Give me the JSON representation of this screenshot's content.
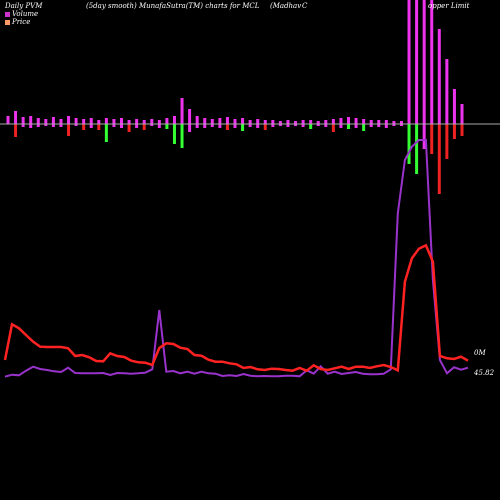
{
  "header": {
    "left": "Daily PVM",
    "mid": "(5day smooth) MunafaSutra(TM) charts for MCL",
    "right_a": "(Madhav",
    "right_b": "C",
    "right_c": "opper Limit"
  },
  "legend": [
    {
      "label": "Volume",
      "color": "#cc33cc"
    },
    {
      "label": "Price",
      "color": "#ff9966"
    }
  ],
  "chart_data": {
    "type": "line",
    "axis_labels": [
      "0M",
      "45.82"
    ],
    "baseline_color": "#aaaaaa",
    "price": {
      "color": "#ff2222",
      "values": [
        46.0,
        56.7,
        55.5,
        53.5,
        51.5,
        50.0,
        49.9,
        49.9,
        49.9,
        49.5,
        47.2,
        47.5,
        46.8,
        45.7,
        45.6,
        48.0,
        47.2,
        46.9,
        45.8,
        45.3,
        45.2,
        44.5,
        49.6,
        51.0,
        50.8,
        49.7,
        49.3,
        47.5,
        47.3,
        46.1,
        45.5,
        45.5,
        45.0,
        44.7,
        43.6,
        43.9,
        43.2,
        43.0,
        43.4,
        43.3,
        43.0,
        42.8,
        43.6,
        42.8,
        44.4,
        43.3,
        43.0,
        43.5,
        44.0,
        43.3,
        44.0,
        44.0,
        43.6,
        44.1,
        44.5,
        43.9,
        42.9,
        69.5,
        76.5,
        79.4,
        80.4,
        75.5,
        47.2,
        46.5,
        46.3,
        47.0,
        45.82
      ]
    },
    "volume_line": {
      "color": "#9933cc",
      "values": [
        10,
        16,
        14,
        28,
        40,
        33,
        30,
        26,
        24,
        37,
        21,
        20,
        20,
        20,
        21,
        15,
        21,
        20,
        19,
        20,
        22,
        32,
        210,
        25,
        27,
        20,
        25,
        19,
        25,
        20,
        19,
        12,
        14,
        12,
        18,
        13,
        11,
        12,
        11,
        11,
        13,
        13,
        11,
        29,
        19,
        41,
        19,
        25,
        18,
        21,
        24,
        19,
        17,
        17,
        19,
        32,
        500,
        660,
        700,
        720,
        720,
        300,
        60,
        20,
        38,
        31,
        37
      ]
    },
    "bars": {
      "colors": {
        "up": "#ee33ee",
        "down": "#ee2222",
        "volume_down": "#33ff33"
      },
      "values": [
        {
          "top": 8,
          "bottom": 0,
          "dir": "mixed"
        },
        {
          "top": 13,
          "bottom": -13,
          "dir": "mixed"
        },
        {
          "top": 7,
          "bottom": -3,
          "dir": "up"
        },
        {
          "top": 8,
          "bottom": -4,
          "dir": "up"
        },
        {
          "top": 6,
          "bottom": -3,
          "dir": "up"
        },
        {
          "top": 5,
          "bottom": -2,
          "dir": "up"
        },
        {
          "top": 7,
          "bottom": -3,
          "dir": "up"
        },
        {
          "top": 5,
          "bottom": -3,
          "dir": "up"
        },
        {
          "top": 8,
          "bottom": -12,
          "dir": "mixed"
        },
        {
          "top": 6,
          "bottom": -2,
          "dir": "up"
        },
        {
          "top": 5,
          "bottom": -6,
          "dir": "mixed"
        },
        {
          "top": 6,
          "bottom": -4,
          "dir": "up"
        },
        {
          "top": 4,
          "bottom": -6,
          "dir": "mixed"
        },
        {
          "top": 6,
          "bottom": -18,
          "dir": "volume_down"
        },
        {
          "top": 5,
          "bottom": -3,
          "dir": "up"
        },
        {
          "top": 6,
          "bottom": -4,
          "dir": "up"
        },
        {
          "top": 4,
          "bottom": -8,
          "dir": "mixed"
        },
        {
          "top": 5,
          "bottom": -4,
          "dir": "up"
        },
        {
          "top": 4,
          "bottom": -6,
          "dir": "mixed"
        },
        {
          "top": 5,
          "bottom": -2,
          "dir": "up"
        },
        {
          "top": 4,
          "bottom": -4,
          "dir": "up"
        },
        {
          "top": 6,
          "bottom": -5,
          "dir": "volume_down"
        },
        {
          "top": 8,
          "bottom": -20,
          "dir": "volume_down"
        },
        {
          "top": 26,
          "bottom": -24,
          "dir": "volume_down"
        },
        {
          "top": 15,
          "bottom": -8,
          "dir": "up"
        },
        {
          "top": 8,
          "bottom": -4,
          "dir": "up"
        },
        {
          "top": 6,
          "bottom": -4,
          "dir": "up"
        },
        {
          "top": 5,
          "bottom": -3,
          "dir": "up"
        },
        {
          "top": 6,
          "bottom": -4,
          "dir": "up"
        },
        {
          "top": 7,
          "bottom": -6,
          "dir": "mixed"
        },
        {
          "top": 5,
          "bottom": -4,
          "dir": "up"
        },
        {
          "top": 6,
          "bottom": -7,
          "dir": "volume_down"
        },
        {
          "top": 4,
          "bottom": -3,
          "dir": "up"
        },
        {
          "top": 5,
          "bottom": -4,
          "dir": "up"
        },
        {
          "top": 4,
          "bottom": -6,
          "dir": "mixed"
        },
        {
          "top": 4,
          "bottom": -3,
          "dir": "up"
        },
        {
          "top": 3,
          "bottom": -2,
          "dir": "up"
        },
        {
          "top": 4,
          "bottom": -3,
          "dir": "up"
        },
        {
          "top": 3,
          "bottom": -2,
          "dir": "up"
        },
        {
          "top": 4,
          "bottom": -3,
          "dir": "up"
        },
        {
          "top": 4,
          "bottom": -5,
          "dir": "volume_down"
        },
        {
          "top": 3,
          "bottom": -2,
          "dir": "up"
        },
        {
          "top": 4,
          "bottom": -3,
          "dir": "up"
        },
        {
          "top": 5,
          "bottom": -8,
          "dir": "mixed"
        },
        {
          "top": 6,
          "bottom": -4,
          "dir": "up"
        },
        {
          "top": 7,
          "bottom": -5,
          "dir": "volume_down"
        },
        {
          "top": 6,
          "bottom": -4,
          "dir": "up"
        },
        {
          "top": 5,
          "bottom": -7,
          "dir": "volume_down"
        },
        {
          "top": 4,
          "bottom": -3,
          "dir": "up"
        },
        {
          "top": 4,
          "bottom": -3,
          "dir": "up"
        },
        {
          "top": 4,
          "bottom": -4,
          "dir": "up"
        },
        {
          "top": 3,
          "bottom": -2,
          "dir": "up"
        },
        {
          "top": 3,
          "bottom": -2,
          "dir": "up"
        },
        {
          "top": 130,
          "bottom": -40,
          "dir": "volume_down"
        },
        {
          "top": 130,
          "bottom": -50,
          "dir": "volume_down"
        },
        {
          "top": 130,
          "bottom": -25,
          "dir": "up"
        },
        {
          "top": 130,
          "bottom": -30,
          "dir": "mixed"
        },
        {
          "top": 95,
          "bottom": -70,
          "dir": "mixed"
        },
        {
          "top": 65,
          "bottom": -35,
          "dir": "mixed"
        },
        {
          "top": 35,
          "bottom": -15,
          "dir": "mixed"
        },
        {
          "top": 20,
          "bottom": -12,
          "dir": "mixed"
        }
      ]
    }
  }
}
